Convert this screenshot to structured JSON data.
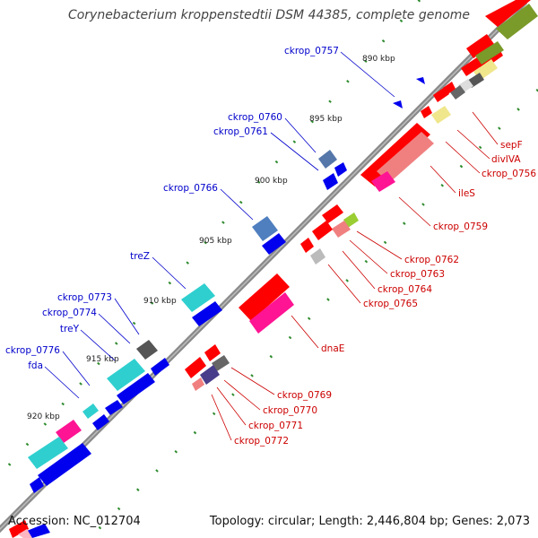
{
  "title": "Corynebacterium kroppenstedtii DSM 44385, complete genome",
  "accession": "Accession: NC_012704",
  "topology": "Topology: circular; Length: 2,446,804 bp; Genes: 2,073",
  "colors": {
    "backbone": "#888888",
    "forward_label": "#0000cc",
    "reverse_label": "#cc0000",
    "tick": "#2e8b2e"
  },
  "scale_labels": [
    "890 kbp",
    "895 kbp",
    "900 kbp",
    "905 kbp",
    "910 kbp",
    "915 kbp",
    "920 kbp"
  ],
  "forward_genes": [
    "ckrop_0757",
    "ckrop_0760",
    "ckrop_0761",
    "ckrop_0766",
    "treZ",
    "ckrop_0773",
    "ckrop_0774",
    "treY",
    "ckrop_0776",
    "fda"
  ],
  "reverse_genes": [
    "sepF",
    "divIVA",
    "ckrop_0756",
    "ileS",
    "ckrop_0759",
    "ckrop_0762",
    "ckrop_0763",
    "ckrop_0764",
    "ckrop_0765",
    "dnaE",
    "ckrop_0769",
    "ckrop_0770",
    "ckrop_0771",
    "ckrop_0772"
  ]
}
